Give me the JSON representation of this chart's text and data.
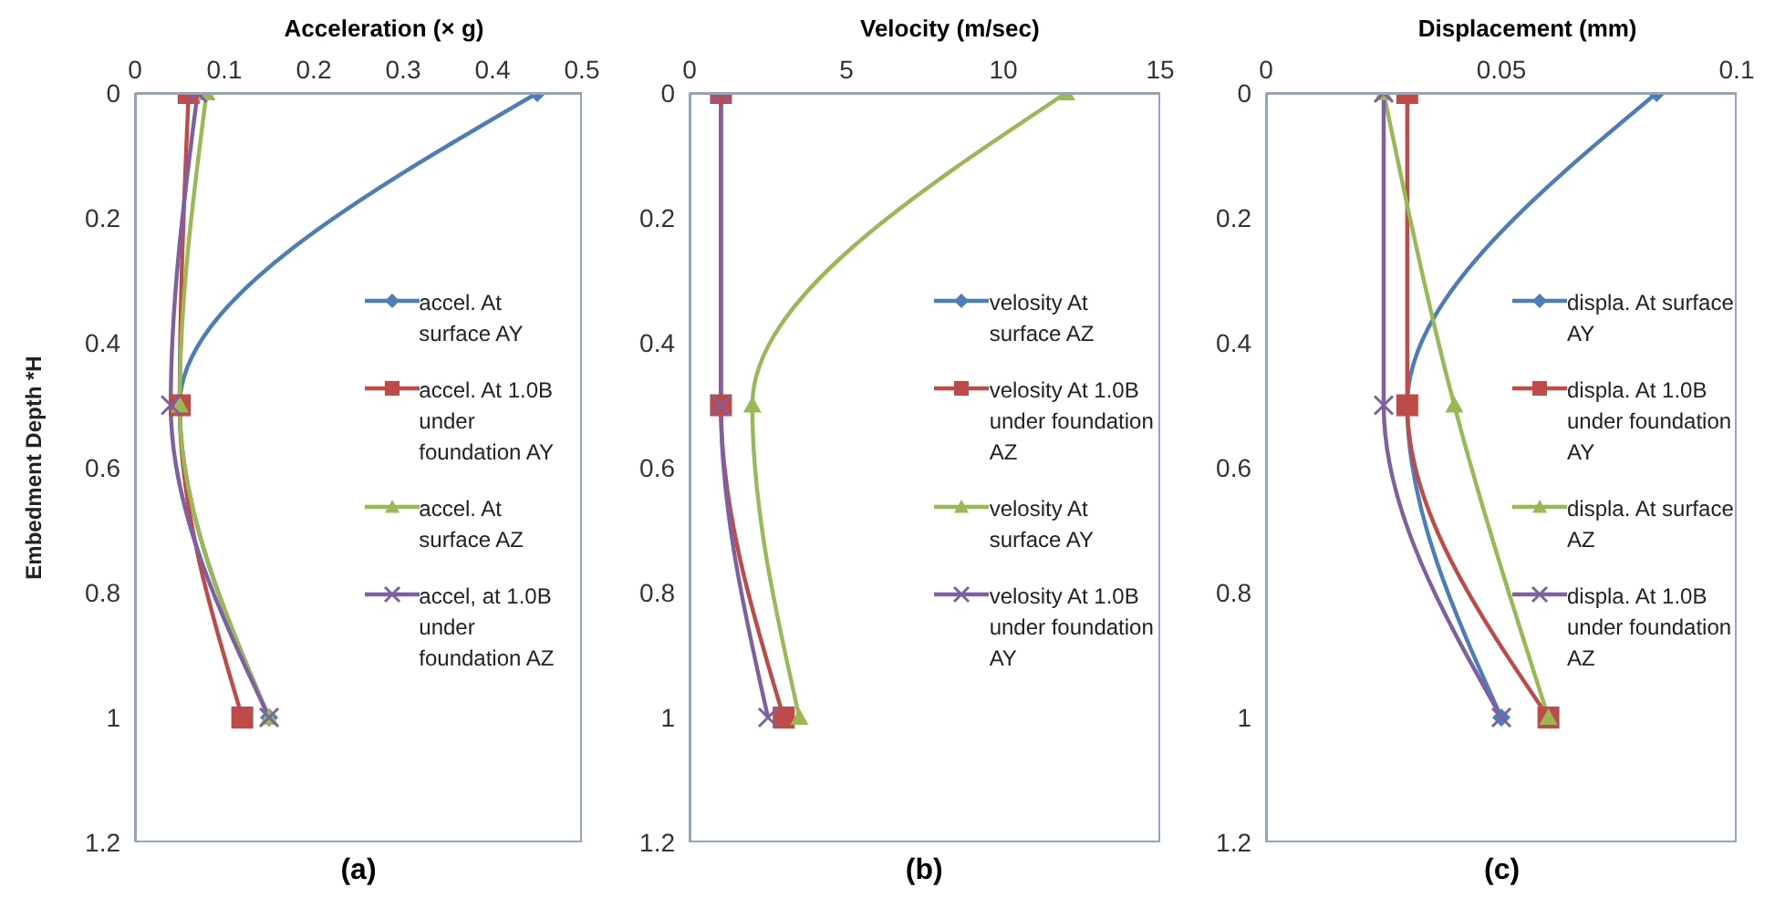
{
  "chart_data": [
    {
      "type": "line",
      "xlabel": "Acceleration (× g)",
      "ylabel": "Embedment Depth *H",
      "annotations": [
        "(a)"
      ],
      "xlim": [
        0,
        0.5
      ],
      "xticks": [
        0,
        0.1,
        0.2,
        0.3,
        0.4,
        0.5
      ],
      "ylim": [
        1.2,
        0
      ],
      "yticks": [
        0,
        0.2,
        0.4,
        0.6,
        0.8,
        1,
        1.2
      ],
      "legend": "right",
      "grid": false,
      "series": [
        {
          "name": "accel. At surface AY",
          "color": "#4a7ebb",
          "marker": "diamond",
          "x": [
            0.45,
            0.05,
            0.15
          ],
          "values": [
            0,
            0.5,
            1
          ]
        },
        {
          "name": "accel. At 1.0B under foundation AY",
          "color": "#be4b48",
          "marker": "square",
          "x": [
            0.06,
            0.05,
            0.12
          ],
          "values": [
            0,
            0.5,
            1
          ]
        },
        {
          "name": "accel. At surface AZ",
          "color": "#98b954",
          "marker": "triangle",
          "x": [
            0.08,
            0.05,
            0.15
          ],
          "values": [
            0,
            0.5,
            1
          ]
        },
        {
          "name": "accel, at 1.0B under foundation AZ",
          "color": "#7d60a0",
          "marker": "cross",
          "x": [
            0.07,
            0.04,
            0.15
          ],
          "values": [
            0,
            0.5,
            1
          ]
        }
      ]
    },
    {
      "type": "line",
      "xlabel": "Velocity (m/sec)",
      "annotations": [
        "(b)"
      ],
      "xlim": [
        0,
        15
      ],
      "xticks": [
        0,
        5,
        10,
        15
      ],
      "ylim": [
        1.2,
        0
      ],
      "yticks": [
        0,
        0.2,
        0.4,
        0.6,
        0.8,
        1,
        1.2
      ],
      "legend": "right",
      "grid": false,
      "series": [
        {
          "name": "velosity At surface AZ",
          "color": "#4a7ebb",
          "marker": "diamond",
          "values": [
            null,
            null,
            null
          ]
        },
        {
          "name": "velosity At 1.0B under foundation AZ",
          "color": "#be4b48",
          "marker": "square",
          "x": [
            1,
            1,
            3
          ],
          "values": [
            0,
            0.5,
            1
          ]
        },
        {
          "name": "velosity At surface AY",
          "color": "#98b954",
          "marker": "triangle",
          "x": [
            12,
            2,
            3.5
          ],
          "values": [
            0,
            0.5,
            1
          ]
        },
        {
          "name": "velosity At 1.0B under foundation AY",
          "color": "#7d60a0",
          "marker": "cross",
          "x": [
            1,
            1,
            2.5
          ],
          "values": [
            0,
            0.5,
            1
          ]
        }
      ]
    },
    {
      "type": "line",
      "xlabel": "Displacement (mm)",
      "annotations": [
        "(c)"
      ],
      "xlim": [
        0,
        0.1
      ],
      "xticks": [
        0,
        0.05,
        0.1
      ],
      "ylim": [
        1.2,
        0
      ],
      "yticks": [
        0,
        0.2,
        0.4,
        0.6,
        0.8,
        1,
        1.2
      ],
      "legend": "right",
      "grid": false,
      "series": [
        {
          "name": "displa. At surface AY",
          "color": "#4a7ebb",
          "marker": "diamond",
          "x": [
            0.083,
            0.03,
            0.05
          ],
          "values": [
            0,
            0.5,
            1
          ]
        },
        {
          "name": "displa. At 1.0B under foundation AY",
          "color": "#be4b48",
          "marker": "square",
          "x": [
            0.03,
            0.03,
            0.06
          ],
          "values": [
            0,
            0.5,
            1
          ]
        },
        {
          "name": "displa. At surface AZ",
          "color": "#98b954",
          "marker": "triangle",
          "x": [
            0.025,
            0.04,
            0.06
          ],
          "values": [
            0,
            0.5,
            1
          ]
        },
        {
          "name": "displa. At 1.0B under foundation AZ",
          "color": "#7d60a0",
          "marker": "cross",
          "x": [
            0.025,
            0.025,
            0.05
          ],
          "values": [
            0,
            0.5,
            1
          ]
        }
      ]
    }
  ]
}
